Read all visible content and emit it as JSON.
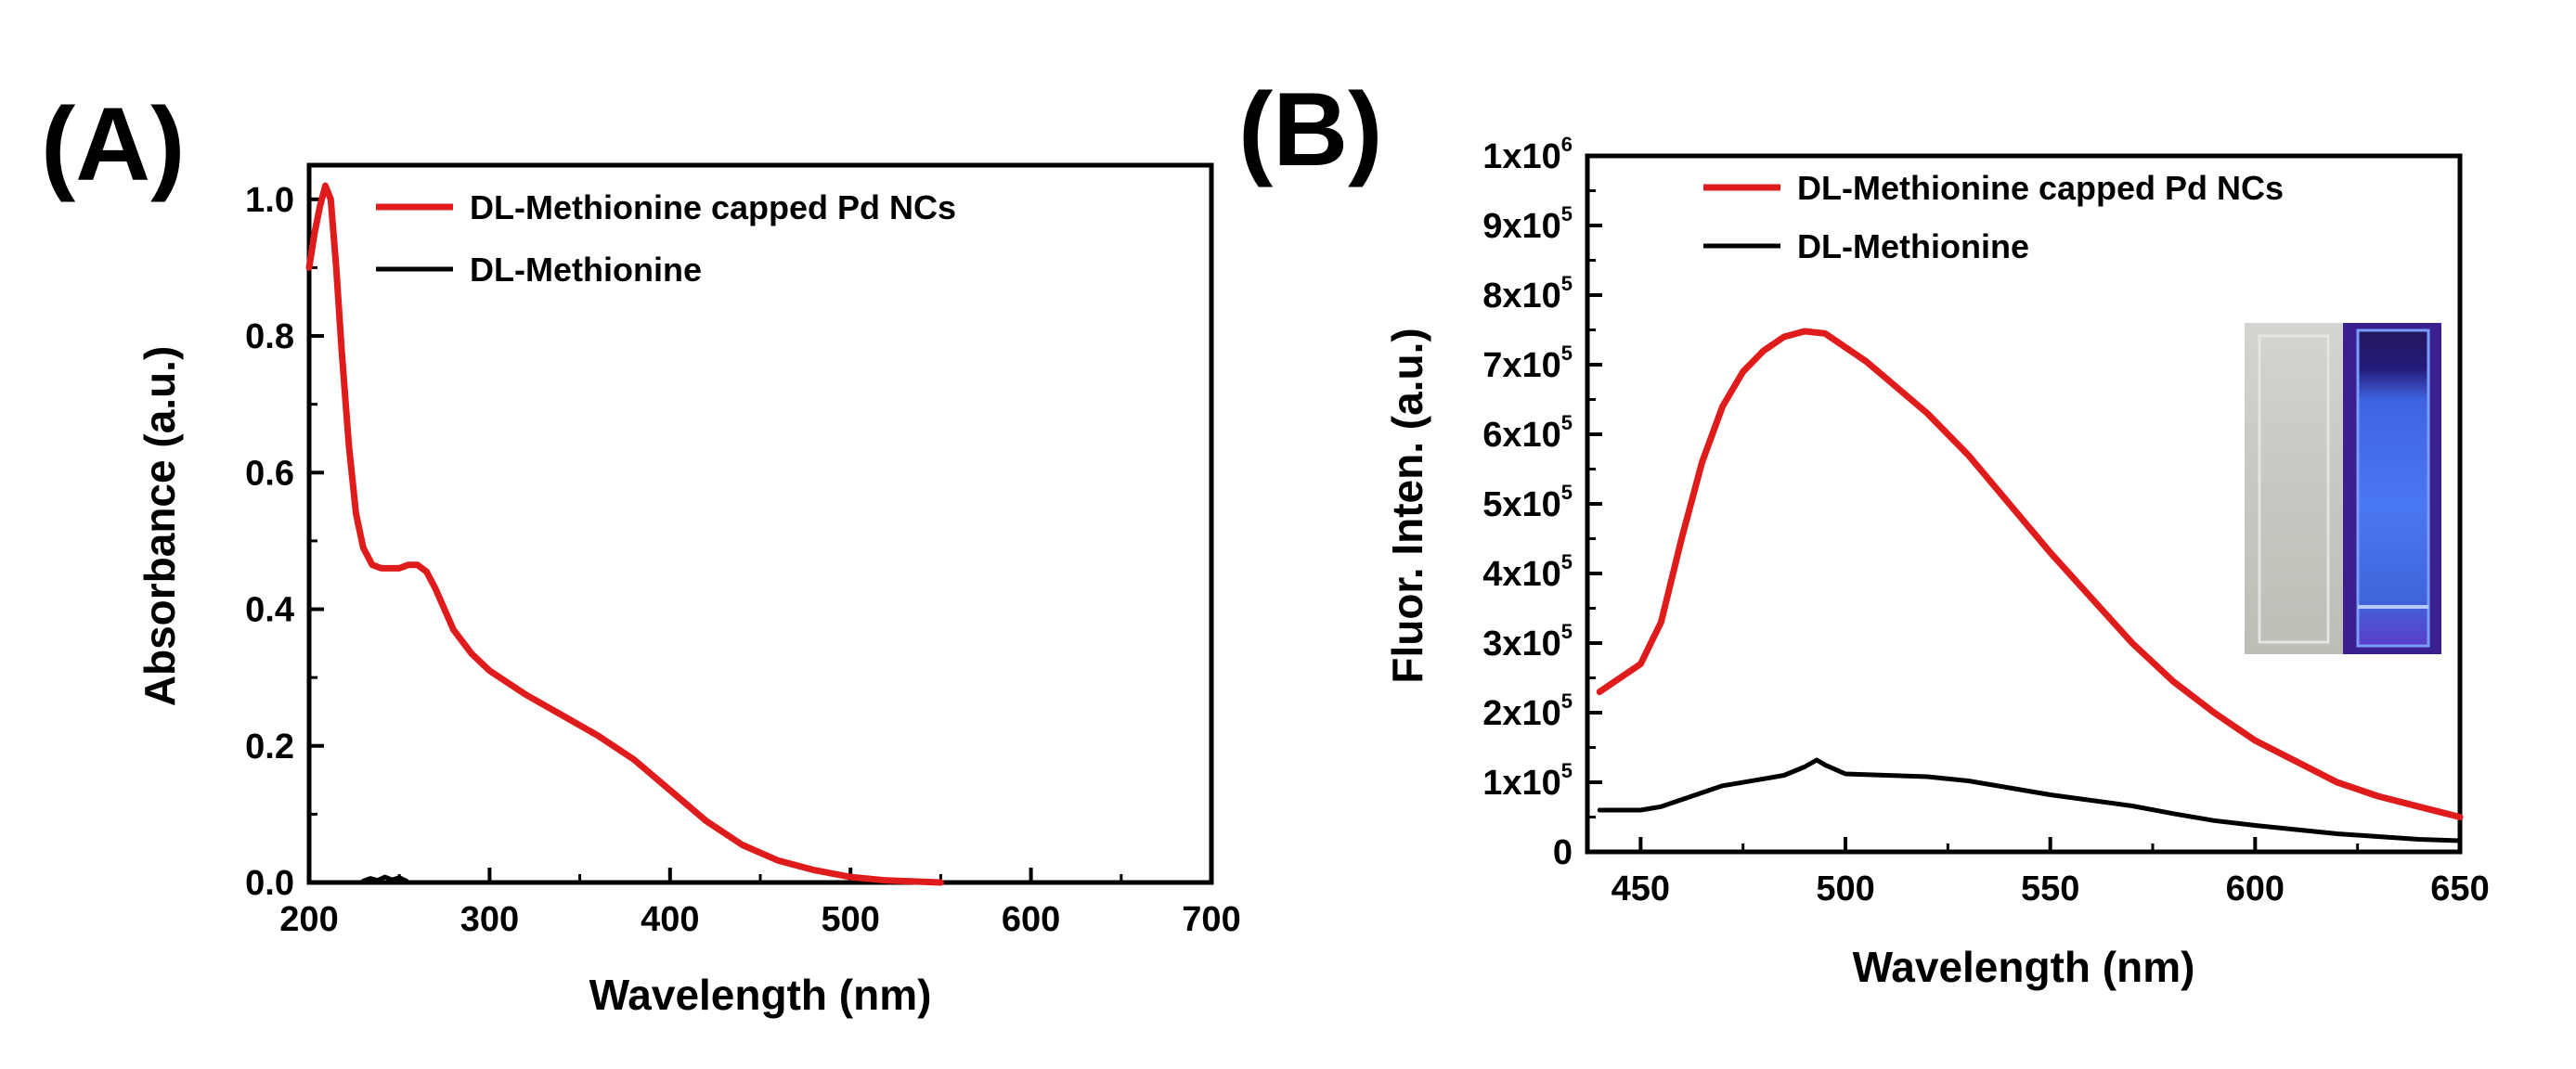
{
  "panels": {
    "a": {
      "letter": "(A)"
    },
    "b": {
      "letter": "(B)"
    }
  },
  "colors": {
    "capped": "#e01b1b",
    "ligand": "#000000",
    "axis": "#000000"
  },
  "chart_data": [
    {
      "type": "line",
      "panel": "(A)",
      "title": "",
      "xlabel": "Wavelength (nm)",
      "ylabel": "Absorbance (a.u.)",
      "xlim": [
        200,
        700
      ],
      "ylim": [
        0,
        1.05
      ],
      "xticks": [
        200,
        300,
        400,
        500,
        600,
        700
      ],
      "xtick_labels": [
        "200",
        "300",
        "400",
        "500",
        "600",
        "700"
      ],
      "yticks": [
        0,
        0.2,
        0.4,
        0.6,
        0.8,
        1.0
      ],
      "ytick_labels": [
        "0.0",
        "0.2",
        "0.4",
        "0.6",
        "0.8",
        "1.0"
      ],
      "grid": false,
      "legend": "top-right",
      "series": [
        {
          "name": "DL-Methionine capped Pd NCs",
          "color": "#e01b1b",
          "x": [
            200,
            203,
            206,
            209,
            212,
            215,
            218,
            222,
            226,
            230,
            235,
            240,
            245,
            250,
            255,
            260,
            265,
            270,
            275,
            280,
            290,
            300,
            320,
            340,
            360,
            380,
            400,
            420,
            440,
            460,
            480,
            500,
            520,
            540,
            550
          ],
          "y": [
            0.9,
            0.95,
            0.99,
            1.02,
            1.0,
            0.9,
            0.78,
            0.64,
            0.54,
            0.49,
            0.465,
            0.46,
            0.46,
            0.46,
            0.465,
            0.465,
            0.455,
            0.43,
            0.4,
            0.37,
            0.335,
            0.31,
            0.275,
            0.245,
            0.215,
            0.18,
            0.135,
            0.09,
            0.055,
            0.032,
            0.018,
            0.008,
            0.003,
            0.001,
            0.0
          ]
        },
        {
          "name": "DL-Methionine",
          "color": "#000000",
          "x": [
            230,
            234,
            238,
            242,
            246,
            250,
            254
          ],
          "y": [
            0.002,
            0.006,
            0.003,
            0.008,
            0.004,
            0.007,
            0.002
          ]
        }
      ]
    },
    {
      "type": "line",
      "panel": "(B)",
      "title": "",
      "xlabel": "Wavelength (nm)",
      "ylabel": "Fluor. Inten. (a.u.)",
      "xlim": [
        437,
        650
      ],
      "ylim": [
        0,
        1000000
      ],
      "xticks": [
        450,
        500,
        550,
        600,
        650
      ],
      "xtick_labels": [
        "450",
        "500",
        "550",
        "600",
        "650"
      ],
      "yticks": [
        0,
        100000,
        200000,
        300000,
        400000,
        500000,
        600000,
        700000,
        800000,
        900000,
        1000000
      ],
      "ytick_mantissas": [
        "0",
        "1x10",
        "2x10",
        "3x10",
        "4x10",
        "5x10",
        "6x10",
        "7x10",
        "8x10",
        "9x10",
        "1x10"
      ],
      "ytick_exponents": [
        "",
        "5",
        "5",
        "5",
        "5",
        "5",
        "5",
        "5",
        "5",
        "5",
        "6"
      ],
      "grid": false,
      "legend": "top-right",
      "inset": "photo of two cuvettes: left clear, right glowing blue under UV light",
      "series": [
        {
          "name": "DL-Methionine capped Pd NCs",
          "color": "#e01b1b",
          "x": [
            440,
            445,
            450,
            455,
            460,
            465,
            470,
            475,
            480,
            485,
            490,
            495,
            500,
            505,
            510,
            520,
            530,
            540,
            550,
            560,
            570,
            580,
            590,
            600,
            610,
            620,
            630,
            640,
            650
          ],
          "y": [
            230000,
            250000,
            270000,
            330000,
            450000,
            560000,
            640000,
            690000,
            720000,
            740000,
            748000,
            745000,
            725000,
            705000,
            680000,
            630000,
            570000,
            500000,
            430000,
            365000,
            300000,
            245000,
            200000,
            160000,
            130000,
            100000,
            80000,
            65000,
            50000
          ]
        },
        {
          "name": "DL-Methionine",
          "color": "#000000",
          "x": [
            440,
            450,
            455,
            460,
            470,
            480,
            485,
            490,
            493,
            495,
            500,
            510,
            520,
            530,
            540,
            550,
            560,
            570,
            580,
            590,
            600,
            610,
            620,
            630,
            640,
            650
          ],
          "y": [
            60000,
            60000,
            65000,
            75000,
            95000,
            105000,
            110000,
            122000,
            132000,
            125000,
            112000,
            110000,
            108000,
            102000,
            92000,
            82000,
            74000,
            66000,
            55000,
            45000,
            38000,
            32000,
            26000,
            22000,
            18000,
            16000
          ]
        }
      ]
    }
  ]
}
